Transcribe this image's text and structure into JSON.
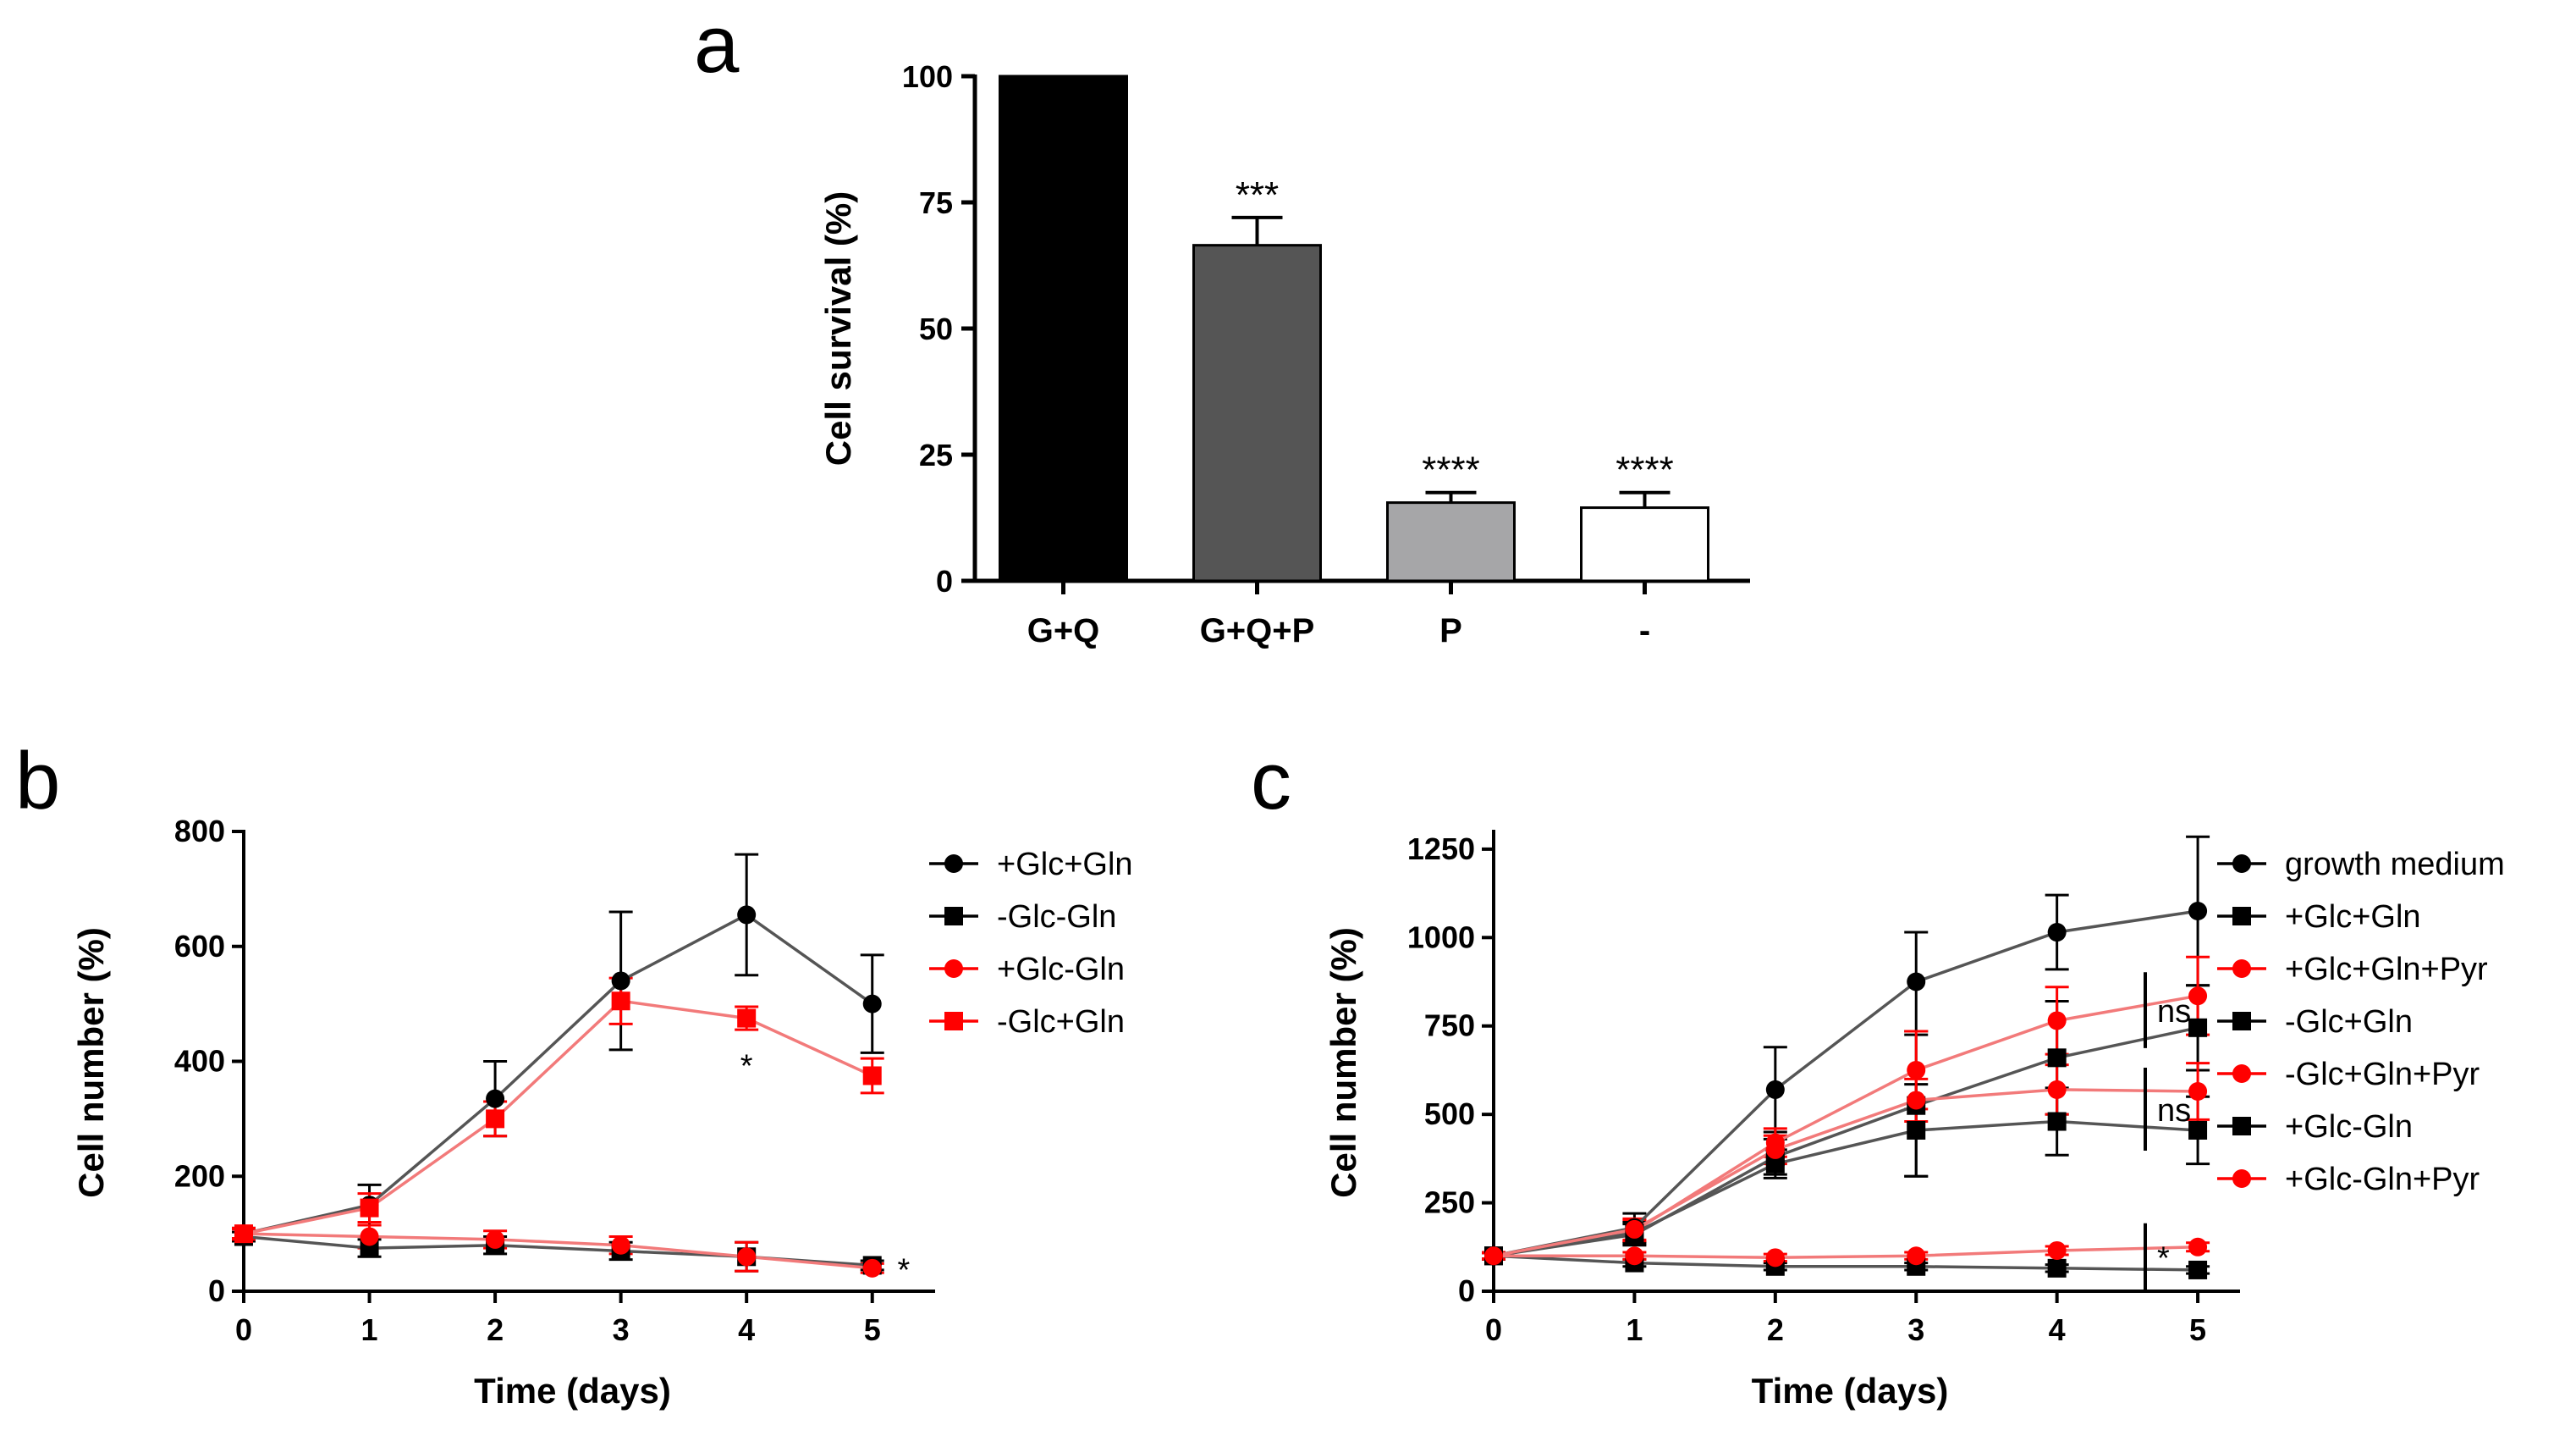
{
  "figure": {
    "colors": {
      "black": "#000000",
      "red": "#ff0000",
      "gray_line": "#555555",
      "pink_line": "#f27a7a",
      "bar_dark": "#555555",
      "bar_light": "#a6a6a8",
      "white": "#ffffff"
    }
  },
  "chart_data": [
    {
      "panel": "a",
      "type": "bar",
      "ylabel": "Cell survival (%)",
      "xlabel": "",
      "ylim": [
        0,
        100
      ],
      "yticks": [
        0,
        25,
        50,
        75,
        100
      ],
      "categories": [
        "G+Q",
        "G+Q+P",
        "P",
        "-"
      ],
      "values": [
        100,
        66.5,
        15.5,
        14.5
      ],
      "errors": [
        0,
        5.5,
        2,
        3
      ],
      "bar_colors": [
        "#000000",
        "#555555",
        "#a6a6a8",
        "#ffffff"
      ],
      "significance": [
        "",
        "***",
        "****",
        "****"
      ]
    },
    {
      "panel": "b",
      "type": "line",
      "xlabel": "Time (days)",
      "ylabel": "Cell number (%)",
      "xlim": [
        0,
        5.5
      ],
      "ylim": [
        0,
        800
      ],
      "xticks": [
        0,
        1,
        2,
        3,
        4,
        5
      ],
      "yticks": [
        0,
        200,
        400,
        600,
        800
      ],
      "x": [
        0,
        1,
        2,
        3,
        4,
        5
      ],
      "series": [
        {
          "name": "+Glc+Gln",
          "marker": "circle",
          "color": "#000000",
          "line": "#555555",
          "values": [
            100,
            150,
            335,
            540,
            655,
            500
          ],
          "errors": [
            10,
            35,
            65,
            120,
            105,
            85
          ]
        },
        {
          "name": "-Glc-Gln",
          "marker": "square",
          "color": "#000000",
          "line": "#555555",
          "values": [
            95,
            75,
            80,
            70,
            60,
            45
          ],
          "errors": [
            8,
            15,
            15,
            15,
            25,
            8
          ]
        },
        {
          "name": "+Glc-Gln",
          "marker": "circle",
          "color": "#ff0000",
          "line": "#f27a7a",
          "values": [
            100,
            95,
            90,
            80,
            60,
            40
          ],
          "errors": [
            8,
            20,
            15,
            15,
            25,
            8
          ]
        },
        {
          "name": "-Glc+Gln",
          "marker": "square",
          "color": "#ff0000",
          "line": "#f27a7a",
          "values": [
            100,
            145,
            300,
            505,
            475,
            375
          ],
          "errors": [
            10,
            25,
            30,
            40,
            20,
            30
          ]
        }
      ],
      "annotations": [
        {
          "text": "*",
          "x": 4,
          "y": 400
        },
        {
          "text": "*",
          "x": 5.25,
          "y": 45
        }
      ]
    },
    {
      "panel": "c",
      "type": "line",
      "xlabel": "Time (days)",
      "ylabel": "Cell number (%)",
      "xlim": [
        0,
        5.3
      ],
      "ylim": [
        0,
        1300
      ],
      "xticks": [
        0,
        1,
        2,
        3,
        4,
        5
      ],
      "yticks": [
        0,
        250,
        500,
        750,
        1000,
        1250
      ],
      "x": [
        0,
        1,
        2,
        3,
        4,
        5
      ],
      "series": [
        {
          "name": "growth medium",
          "marker": "circle",
          "color": "#000000",
          "line": "#555555",
          "values": [
            100,
            180,
            570,
            875,
            1015,
            1075
          ],
          "errors": [
            10,
            40,
            120,
            140,
            105,
            210
          ]
        },
        {
          "name": "+Glc+Gln",
          "marker": "square",
          "color": "#000000",
          "line": "#555555",
          "values": [
            100,
            160,
            380,
            525,
            660,
            745
          ],
          "errors": [
            10,
            30,
            50,
            200,
            160,
            120
          ]
        },
        {
          "name": "+Glc+Gln+Pyr",
          "marker": "circle",
          "color": "#ff0000",
          "line": "#f27a7a",
          "values": [
            100,
            170,
            420,
            625,
            765,
            835
          ],
          "errors": [
            10,
            30,
            40,
            110,
            95,
            110
          ]
        },
        {
          "name": "-Glc+Gln",
          "marker": "square",
          "color": "#000000",
          "line": "#555555",
          "values": [
            100,
            165,
            360,
            455,
            480,
            455
          ],
          "errors": [
            10,
            30,
            40,
            130,
            95,
            95
          ]
        },
        {
          "name": "-Glc+Gln+Pyr",
          "marker": "circle",
          "color": "#ff0000",
          "line": "#f27a7a",
          "values": [
            100,
            175,
            400,
            540,
            570,
            565
          ],
          "errors": [
            10,
            30,
            40,
            60,
            70,
            80
          ]
        },
        {
          "name": "+Glc-Gln",
          "marker": "square",
          "color": "#000000",
          "line": "#555555",
          "values": [
            100,
            80,
            70,
            70,
            65,
            60
          ],
          "errors": [
            8,
            10,
            10,
            10,
            10,
            10
          ]
        },
        {
          "name": "+Glc-Gln+Pyr",
          "marker": "circle",
          "color": "#ff0000",
          "line": "#f27a7a",
          "values": [
            100,
            100,
            95,
            100,
            115,
            125
          ],
          "errors": [
            8,
            10,
            10,
            10,
            12,
            12
          ]
        }
      ],
      "annotations": [
        {
          "text": "ns",
          "y_range": [
            745,
            835
          ]
        },
        {
          "text": "ns",
          "y_range": [
            455,
            565
          ]
        },
        {
          "text": "*",
          "y_range": [
            60,
            125
          ]
        }
      ]
    }
  ],
  "labels": {
    "panel_a": "a",
    "panel_b": "b",
    "panel_c": "c"
  }
}
